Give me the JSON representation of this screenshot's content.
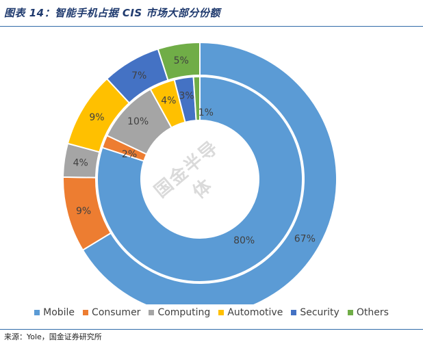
{
  "header": {
    "title": "图表 14：智能手机占据 CIS 市场大部分份额"
  },
  "footer": {
    "source": "来源：Yole，国金证券研究所"
  },
  "watermark": "国金半导体",
  "chart_data": {
    "type": "donut",
    "categories": [
      "Mobile",
      "Consumer",
      "Computing",
      "Automotive",
      "Security",
      "Others"
    ],
    "colors": [
      "#5b9bd5",
      "#ed7d31",
      "#a5a5a5",
      "#ffc000",
      "#4472c4",
      "#70ad47"
    ],
    "series": [
      {
        "ring": "inner",
        "values": [
          80,
          2,
          10,
          4,
          3,
          1
        ],
        "labels": [
          "80%",
          "2%",
          "10%",
          "4%",
          "3%",
          "1%"
        ]
      },
      {
        "ring": "outer",
        "values": [
          67,
          9,
          4,
          9,
          7,
          5
        ],
        "labels": [
          "67%",
          "9%",
          "4%",
          "9%",
          "7%",
          "5%"
        ]
      }
    ],
    "legend_position": "bottom"
  }
}
